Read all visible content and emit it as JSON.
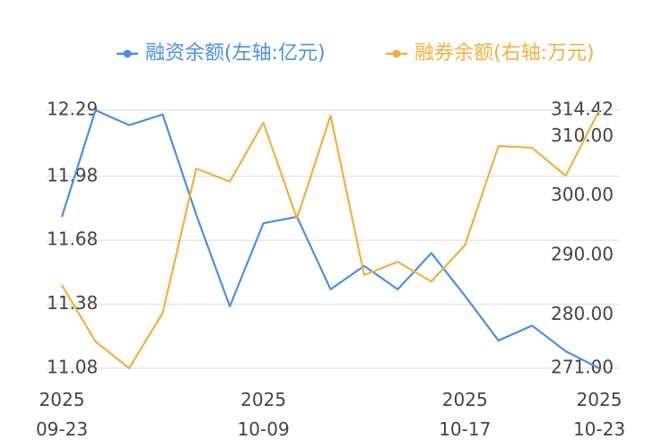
{
  "chart_data": {
    "type": "line",
    "legend": "top",
    "grid": true,
    "categories": [
      "2025\n09-23",
      null,
      null,
      null,
      null,
      null,
      "2025\n10-09",
      null,
      null,
      null,
      null,
      null,
      "2025\n10-17",
      null,
      null,
      null,
      "2025\n10-23"
    ],
    "series": [
      {
        "name": "融资余额(左轴:亿元)",
        "color": "#4a90e2",
        "values": [
          11.79,
          12.29,
          12.22,
          12.27,
          11.8,
          11.37,
          11.76,
          11.79,
          11.45,
          11.56,
          11.45,
          11.62,
          11.42,
          11.21,
          11.28,
          11.16,
          11.08
        ]
      },
      {
        "name": "融券余额(右轴:万元)",
        "color": "#f0b040",
        "axis": "y2",
        "values": [
          285.0,
          275.5,
          271.0,
          280.3,
          304.6,
          302.4,
          312.3,
          296.2,
          313.5,
          286.7,
          288.9,
          285.6,
          291.7,
          308.4,
          308.1,
          303.4,
          314.4
        ]
      }
    ],
    "ylim": [
      11.08,
      12.29
    ],
    "yticks": [
      11.08,
      11.38,
      11.68,
      11.98,
      12.29
    ],
    "y2lim": [
      271,
      314.42
    ],
    "y2ticks": [
      {
        "value": 271,
        "label": "271.00"
      },
      {
        "value": 280,
        "label": "280.00"
      },
      {
        "value": 290,
        "label": "290.00"
      },
      {
        "value": 300,
        "label": "300.00"
      },
      {
        "value": 310,
        "label": "310.00"
      },
      314.42
    ]
  }
}
